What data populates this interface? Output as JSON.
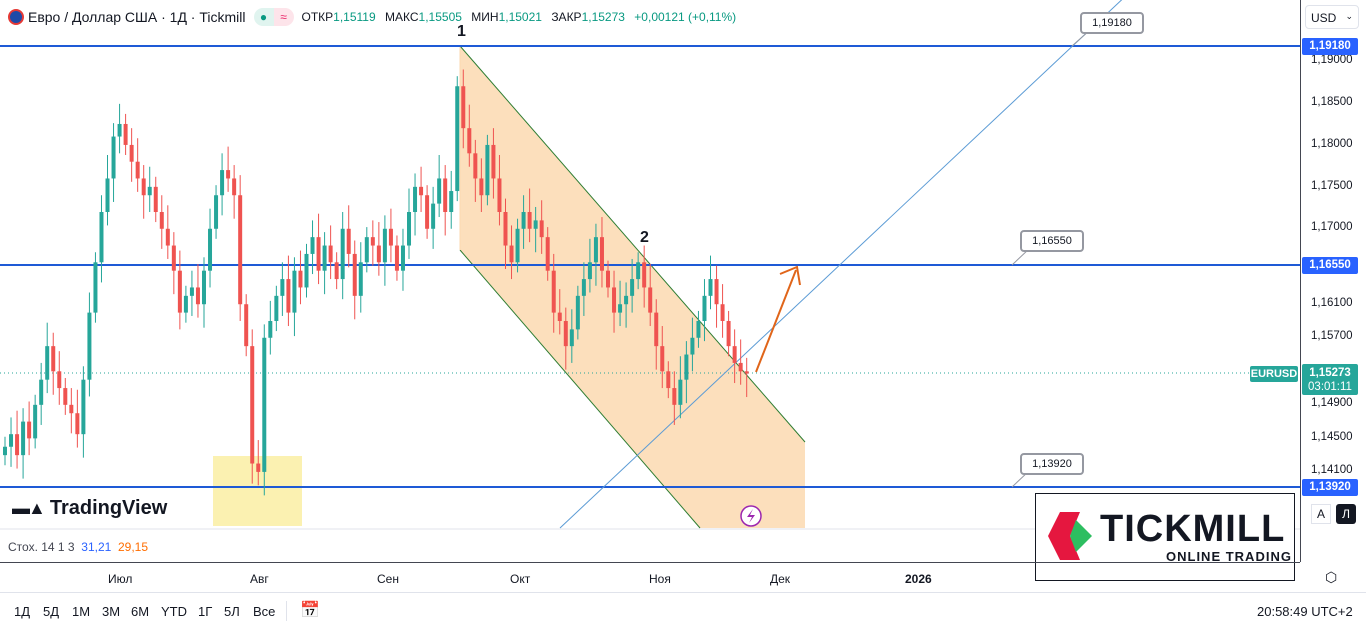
{
  "header": {
    "symbol_title": "Евро / Доллар США · 1Д · Tickmill",
    "open_label": "ОТКР",
    "open": "1,15119",
    "high_label": "МАКС",
    "high": "1,15505",
    "low_label": "МИН",
    "low": "1,15021",
    "close_label": "ЗАКР",
    "close": "1,15273",
    "change": "+0,00121 (+0,11%)"
  },
  "currency": "USD",
  "price_axis": {
    "ticks": [
      "1,19000",
      "1,18500",
      "1,18000",
      "1,17500",
      "1,17000",
      "1,16100",
      "1,15700",
      "1,14900",
      "1,14500",
      "1,14100"
    ],
    "levels": [
      "1,19180",
      "1,16550",
      "1,13920"
    ],
    "current_symbol": "EURUSD",
    "current_price": "1,15273",
    "countdown": "03:01:11",
    "auto": "A",
    "log": "Л"
  },
  "callouts": [
    "1,19180",
    "1,16550",
    "1,13920"
  ],
  "annotations": {
    "point1": "1",
    "point2": "2"
  },
  "indicator": {
    "name": "Стох. 14 1 3",
    "k": "31,21",
    "d": "29,15"
  },
  "time_axis": [
    "Июл",
    "Авг",
    "Сен",
    "Окт",
    "Ноя",
    "Дек",
    "2026"
  ],
  "ranges": [
    "1Д",
    "5Д",
    "1M",
    "3M",
    "6M",
    "YTD",
    "1Г",
    "5Л",
    "Все"
  ],
  "clock": "20:58:49 UTC+2",
  "logos": {
    "tradingview": "TradingView",
    "tickmill": "TICKMILL",
    "tickmill_sub": "ONLINE TRADING"
  },
  "colors": {
    "up": "#26a69a",
    "down": "#ef5350",
    "level": "#2962ff",
    "channel": "#fbd9b0"
  },
  "chart_data": {
    "type": "candlestick",
    "closes": [
      1.144,
      1.1455,
      1.143,
      1.147,
      1.145,
      1.149,
      1.152,
      1.156,
      1.153,
      1.151,
      1.149,
      1.148,
      1.1455,
      1.152,
      1.16,
      1.166,
      1.172,
      1.176,
      1.181,
      1.1825,
      1.18,
      1.178,
      1.176,
      1.174,
      1.175,
      1.172,
      1.17,
      1.168,
      1.165,
      1.16,
      1.162,
      1.163,
      1.161,
      1.165,
      1.17,
      1.174,
      1.177,
      1.176,
      1.174,
      1.161,
      1.156,
      1.142,
      1.141,
      1.157,
      1.159,
      1.162,
      1.164,
      1.16,
      1.165,
      1.163,
      1.167,
      1.169,
      1.165,
      1.168,
      1.166,
      1.164,
      1.17,
      1.167,
      1.162,
      1.166,
      1.169,
      1.168,
      1.166,
      1.17,
      1.168,
      1.165,
      1.168,
      1.172,
      1.175,
      1.174,
      1.17,
      1.173,
      1.176,
      1.172,
      1.1745,
      1.187,
      1.182,
      1.179,
      1.176,
      1.174,
      1.18,
      1.176,
      1.172,
      1.168,
      1.166,
      1.17,
      1.172,
      1.17,
      1.171,
      1.169,
      1.165,
      1.16,
      1.159,
      1.156,
      1.158,
      1.162,
      1.164,
      1.166,
      1.169,
      1.165,
      1.163,
      1.16,
      1.161,
      1.162,
      1.164,
      1.166,
      1.163,
      1.16,
      1.156,
      1.153,
      1.151,
      1.149,
      1.152,
      1.155,
      1.157,
      1.159,
      1.162,
      1.164,
      1.161,
      1.159,
      1.156,
      1.154,
      1.153,
      1.15273
    ],
    "levels": [
      1.1918,
      1.1655,
      1.1392
    ],
    "ylim": [
      1.1365,
      1.1975
    ]
  }
}
